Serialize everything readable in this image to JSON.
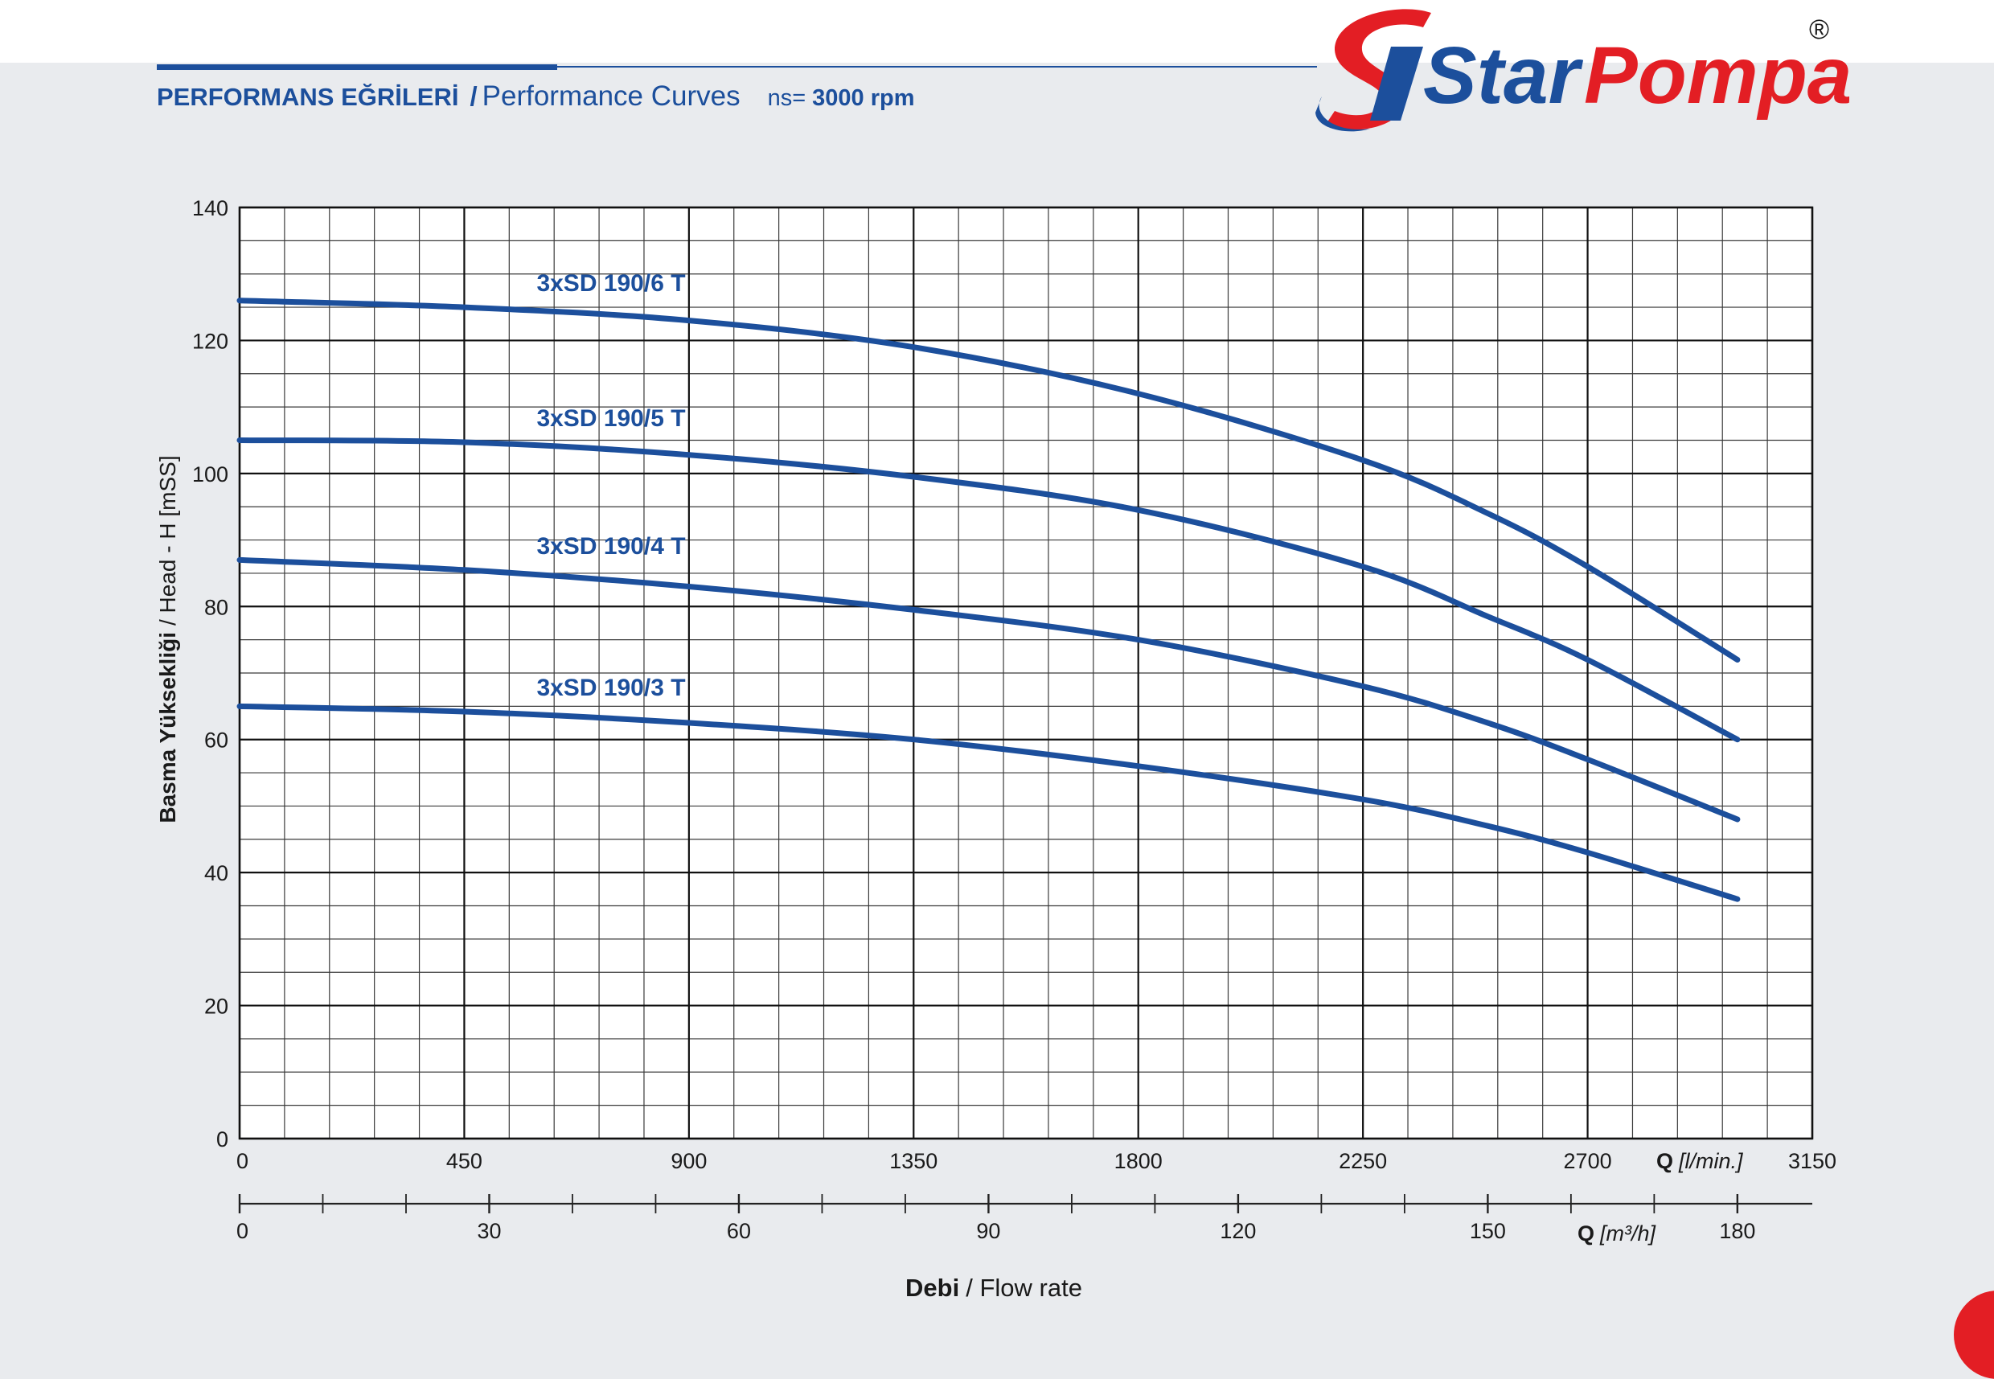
{
  "header": {
    "title_tr": "PERFORMANS EĞRİLERİ",
    "separator": "/",
    "title_en": "Performance Curves",
    "speed_label": "ns=",
    "speed_value": "3000 rpm"
  },
  "brand": {
    "name_part1": "Star",
    "name_part2": "Pompa",
    "registered": "®",
    "primary_color": "#1c4f9c",
    "accent_color": "#e31e24"
  },
  "chart_data": {
    "type": "line",
    "ylabel_bold": "Basma Yüksekliği",
    "ylabel_rest": "/ Head - H [mSS]",
    "xlabel_bold": "Debi",
    "xlabel_rest": "/ Flow rate",
    "x_unit_label": "Q",
    "x_unit": "[l/min.]",
    "x2_unit_label": "Q",
    "x2_unit": "[m³/h]",
    "xlim": [
      0,
      3150
    ],
    "ylim": [
      0,
      140
    ],
    "y_ticks": [
      "0",
      "20",
      "40",
      "60",
      "80",
      "100",
      "120",
      "140"
    ],
    "x_ticks": [
      "0",
      "450",
      "900",
      "1350",
      "1800",
      "2250",
      "2700",
      "3150"
    ],
    "x2_ticks": [
      "0",
      "30",
      "60",
      "90",
      "120",
      "150",
      "180"
    ],
    "grid": true,
    "series": [
      {
        "name": "3xSD 190/6 T",
        "x": [
          0,
          450,
          900,
          1350,
          1800,
          2250,
          2500,
          2700,
          3000
        ],
        "y": [
          126,
          125,
          123,
          119,
          112,
          102,
          94,
          86,
          72
        ]
      },
      {
        "name": "3xSD 190/5 T",
        "x": [
          0,
          450,
          900,
          1350,
          1800,
          2250,
          2500,
          2700,
          3000
        ],
        "y": [
          105,
          104.7,
          102.8,
          99.5,
          94.5,
          86,
          78.5,
          72,
          60
        ]
      },
      {
        "name": "3xSD 190/4 T",
        "x": [
          0,
          450,
          900,
          1350,
          1800,
          2250,
          2500,
          2700,
          3000
        ],
        "y": [
          87,
          85.5,
          83,
          79.5,
          75,
          68,
          62.5,
          57,
          48
        ]
      },
      {
        "name": "3xSD 190/3 T",
        "x": [
          0,
          450,
          900,
          1350,
          1800,
          2250,
          2500,
          2700,
          3000
        ],
        "y": [
          65,
          64.2,
          62.5,
          60,
          56,
          51,
          47,
          43,
          36
        ]
      }
    ]
  }
}
